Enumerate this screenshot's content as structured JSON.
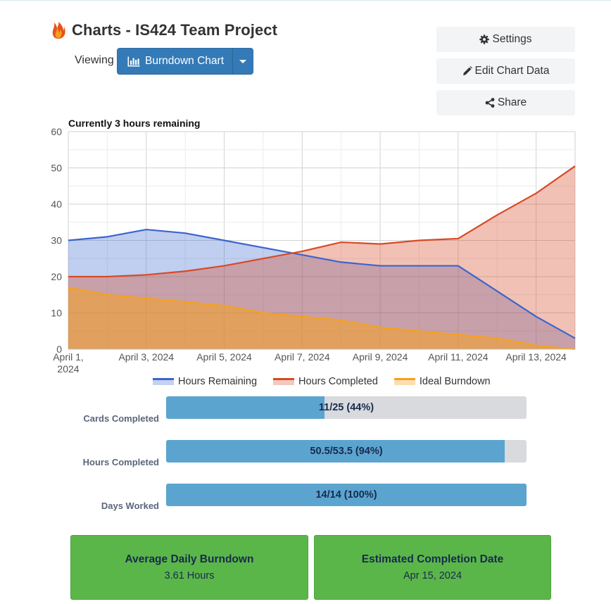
{
  "header": {
    "title": "Charts - IS424 Team Project",
    "viewing_label": "Viewing",
    "view_select_label": "Burndown Chart"
  },
  "actions": {
    "settings_label": "Settings",
    "edit_chart_data_label": "Edit Chart Data",
    "share_label": "Share"
  },
  "colors": {
    "primary": "#337ab7",
    "hours_remaining": "#3a66cc",
    "hours_completed": "#d84a26",
    "ideal_burndown": "#f5a11f",
    "progress_fill": "#5ba4cf",
    "card_green": "#5bb64a"
  },
  "chart_data": {
    "type": "area",
    "title": "Currently 3 hours remaining",
    "x": [
      "2024-04-01",
      "2024-04-02",
      "2024-04-03",
      "2024-04-04",
      "2024-04-05",
      "2024-04-06",
      "2024-04-07",
      "2024-04-08",
      "2024-04-09",
      "2024-04-10",
      "2024-04-11",
      "2024-04-12",
      "2024-04-13",
      "2024-04-14"
    ],
    "x_tick_labels": [
      {
        "date": "2024-04-01",
        "label": "April 1, 2024"
      },
      {
        "date": "2024-04-03",
        "label": "April 3, 2024"
      },
      {
        "date": "2024-04-05",
        "label": "April 5, 2024"
      },
      {
        "date": "2024-04-07",
        "label": "April 7, 2024"
      },
      {
        "date": "2024-04-09",
        "label": "April 9, 2024"
      },
      {
        "date": "2024-04-11",
        "label": "April 11, 2024"
      },
      {
        "date": "2024-04-13",
        "label": "April 13, 2024"
      }
    ],
    "y_ticks": [
      0,
      10,
      20,
      30,
      40,
      50,
      60
    ],
    "ylim": [
      0,
      60
    ],
    "grid": true,
    "legend_position": "bottom",
    "series": [
      {
        "name": "Hours Remaining",
        "color": "#3a66cc",
        "values": [
          30,
          31,
          33,
          32,
          30,
          28,
          26,
          24,
          23,
          23,
          23,
          16,
          9,
          3
        ]
      },
      {
        "name": "Hours Completed",
        "color": "#d84a26",
        "values": [
          20,
          20,
          20.5,
          21.5,
          23,
          25,
          27,
          29.5,
          29,
          30,
          30.5,
          37,
          43,
          50.5
        ]
      },
      {
        "name": "Ideal Burndown",
        "color": "#f5a11f",
        "values": [
          17,
          15,
          14,
          13,
          12,
          10,
          9,
          8,
          6,
          5,
          4,
          3,
          1,
          0
        ]
      }
    ]
  },
  "stats": [
    {
      "label": "Cards Completed",
      "text": "11/25 (44%)",
      "fraction": 0.44
    },
    {
      "label": "Hours Completed",
      "text": "50.5/53.5 (94%)",
      "fraction": 0.94
    },
    {
      "label": "Days Worked",
      "text": "14/14 (100%)",
      "fraction": 1.0
    }
  ],
  "cards": [
    {
      "title": "Average Daily Burndown",
      "value": "3.61 Hours"
    },
    {
      "title": "Estimated Completion Date",
      "value": "Apr 15, 2024"
    }
  ]
}
